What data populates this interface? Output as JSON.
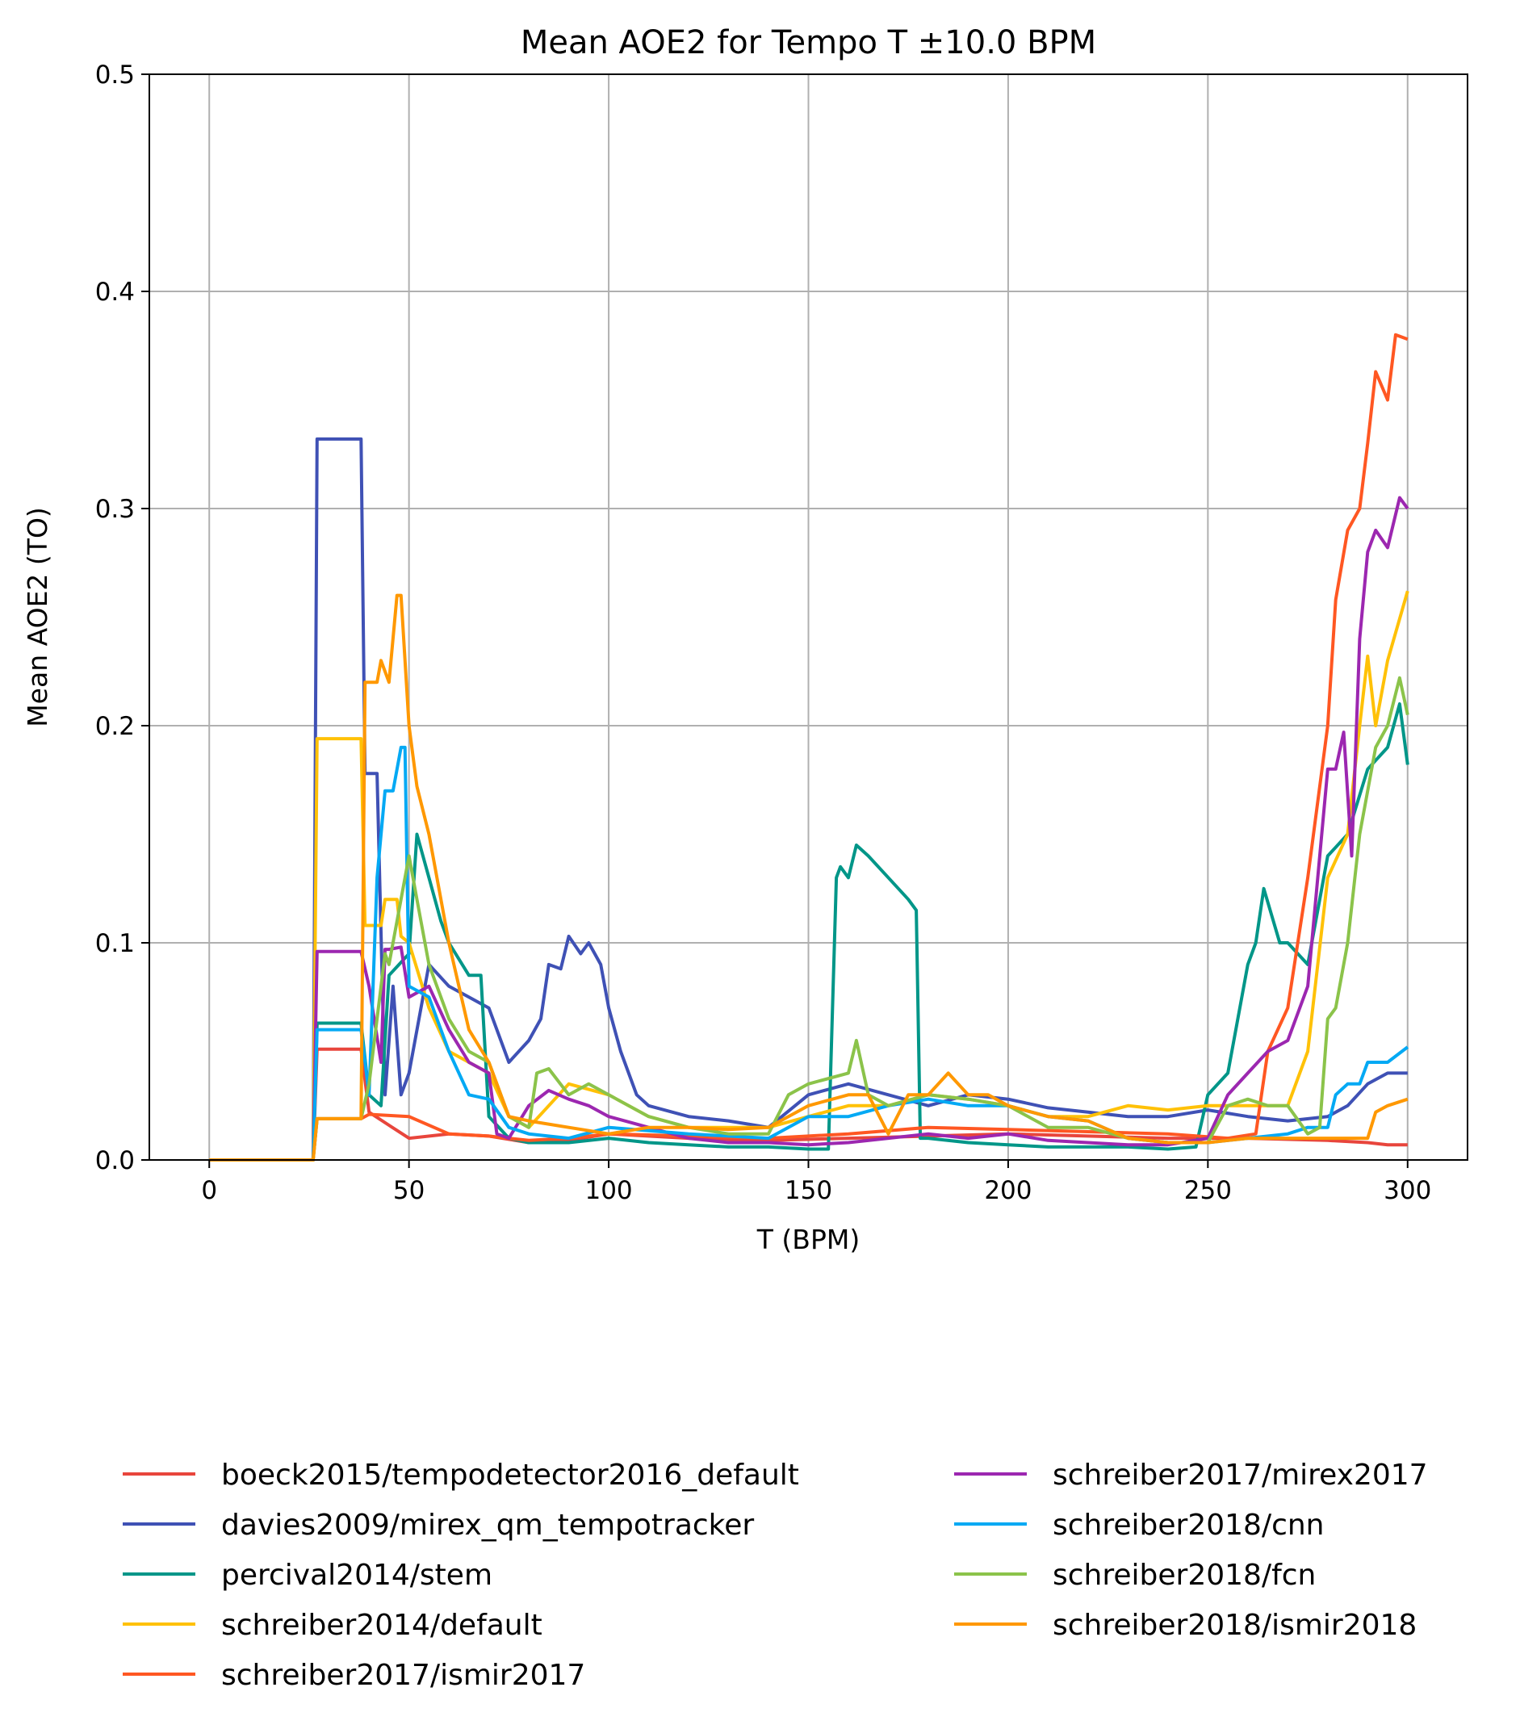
{
  "chart_data": {
    "type": "line",
    "title": "Mean AOE2 for Tempo T ±10.0 BPM",
    "xlabel": "T (BPM)",
    "ylabel": "Mean AOE2 (TO)",
    "xlim": [
      -15,
      315
    ],
    "ylim": [
      0,
      0.5
    ],
    "xticks": [
      0,
      50,
      100,
      150,
      200,
      250,
      300
    ],
    "yticks": [
      0.0,
      0.1,
      0.2,
      0.3,
      0.4,
      0.5
    ],
    "xtick_labels": [
      "0",
      "50",
      "100",
      "150",
      "200",
      "250",
      "300"
    ],
    "ytick_labels": [
      "0.0",
      "0.1",
      "0.2",
      "0.3",
      "0.4",
      "0.5"
    ],
    "grid": true,
    "legend_position": "below",
    "series": [
      {
        "name": "boeck2015/tempodetector2016_default",
        "color": "#e8453c",
        "x": [
          0,
          26,
          27,
          38,
          40,
          45,
          50,
          60,
          70,
          80,
          90,
          100,
          120,
          140,
          160,
          180,
          200,
          220,
          240,
          260,
          280,
          290,
          295,
          300
        ],
        "y": [
          0,
          0,
          0.051,
          0.051,
          0.022,
          0.016,
          0.01,
          0.012,
          0.011,
          0.008,
          0.009,
          0.012,
          0.01,
          0.009,
          0.01,
          0.011,
          0.012,
          0.011,
          0.01,
          0.01,
          0.009,
          0.008,
          0.007,
          0.007
        ]
      },
      {
        "name": "davies2009/mirex_qm_tempotracker",
        "color": "#3f51b5",
        "x": [
          0,
          26,
          27,
          38,
          39,
          42,
          44,
          46,
          48,
          50,
          55,
          60,
          65,
          70,
          75,
          80,
          83,
          85,
          88,
          90,
          93,
          95,
          98,
          100,
          103,
          107,
          110,
          120,
          130,
          140,
          150,
          160,
          170,
          180,
          190,
          200,
          210,
          220,
          230,
          240,
          250,
          260,
          270,
          280,
          285,
          290,
          295,
          300
        ],
        "y": [
          0,
          0,
          0.332,
          0.332,
          0.178,
          0.178,
          0.03,
          0.08,
          0.03,
          0.04,
          0.09,
          0.08,
          0.075,
          0.07,
          0.045,
          0.055,
          0.065,
          0.09,
          0.088,
          0.103,
          0.095,
          0.1,
          0.09,
          0.07,
          0.05,
          0.03,
          0.025,
          0.02,
          0.018,
          0.015,
          0.03,
          0.035,
          0.03,
          0.025,
          0.03,
          0.028,
          0.024,
          0.022,
          0.02,
          0.02,
          0.023,
          0.02,
          0.018,
          0.02,
          0.025,
          0.035,
          0.04,
          0.04
        ]
      },
      {
        "name": "percival2014/stem",
        "color": "#009688",
        "x": [
          0,
          26,
          27,
          38,
          40,
          43,
          45,
          50,
          52,
          55,
          58,
          60,
          65,
          68,
          70,
          75,
          80,
          90,
          100,
          110,
          120,
          130,
          140,
          150,
          155,
          157,
          158,
          160,
          162,
          165,
          170,
          175,
          177,
          178,
          180,
          190,
          200,
          210,
          220,
          230,
          240,
          247,
          250,
          255,
          260,
          262,
          264,
          268,
          270,
          275,
          280,
          285,
          290,
          295,
          298,
          300
        ],
        "y": [
          0,
          0,
          0.063,
          0.063,
          0.03,
          0.025,
          0.085,
          0.095,
          0.15,
          0.13,
          0.11,
          0.1,
          0.085,
          0.085,
          0.02,
          0.01,
          0.008,
          0.008,
          0.01,
          0.008,
          0.007,
          0.006,
          0.006,
          0.005,
          0.005,
          0.13,
          0.135,
          0.13,
          0.145,
          0.14,
          0.13,
          0.12,
          0.115,
          0.01,
          0.01,
          0.008,
          0.007,
          0.006,
          0.006,
          0.006,
          0.005,
          0.006,
          0.03,
          0.04,
          0.09,
          0.1,
          0.125,
          0.1,
          0.1,
          0.09,
          0.14,
          0.15,
          0.18,
          0.19,
          0.21,
          0.182
        ]
      },
      {
        "name": "schreiber2014/default",
        "color": "#ffc107",
        "x": [
          0,
          26,
          27,
          38,
          39,
          43,
          44,
          47,
          48,
          50,
          55,
          60,
          65,
          70,
          75,
          80,
          90,
          100,
          110,
          120,
          130,
          140,
          150,
          160,
          170,
          180,
          190,
          200,
          210,
          220,
          230,
          240,
          250,
          260,
          270,
          275,
          280,
          285,
          288,
          290,
          292,
          295,
          300
        ],
        "y": [
          0,
          0,
          0.194,
          0.194,
          0.108,
          0.108,
          0.12,
          0.12,
          0.103,
          0.1,
          0.07,
          0.05,
          0.045,
          0.04,
          0.02,
          0.015,
          0.035,
          0.03,
          0.02,
          0.015,
          0.015,
          0.015,
          0.02,
          0.025,
          0.025,
          0.03,
          0.028,
          0.025,
          0.02,
          0.02,
          0.025,
          0.023,
          0.025,
          0.025,
          0.025,
          0.05,
          0.13,
          0.15,
          0.2,
          0.232,
          0.2,
          0.23,
          0.262
        ]
      },
      {
        "name": "schreiber2017/ismir2017",
        "color": "#ff5722",
        "x": [
          0,
          26,
          27,
          38,
          40,
          50,
          60,
          70,
          80,
          90,
          100,
          120,
          140,
          160,
          180,
          200,
          220,
          240,
          255,
          262,
          265,
          270,
          275,
          280,
          282,
          285,
          288,
          290,
          292,
          295,
          297,
          300
        ],
        "y": [
          0,
          0,
          0.019,
          0.019,
          0.021,
          0.02,
          0.012,
          0.011,
          0.009,
          0.01,
          0.012,
          0.011,
          0.01,
          0.012,
          0.015,
          0.014,
          0.013,
          0.012,
          0.01,
          0.012,
          0.05,
          0.07,
          0.13,
          0.2,
          0.258,
          0.29,
          0.3,
          0.33,
          0.363,
          0.35,
          0.38,
          0.378
        ]
      },
      {
        "name": "schreiber2017/mirex2017",
        "color": "#9c27b0",
        "x": [
          0,
          26,
          27,
          38,
          40,
          43,
          44,
          45,
          48,
          50,
          55,
          60,
          65,
          70,
          72,
          75,
          80,
          85,
          90,
          95,
          100,
          110,
          120,
          130,
          140,
          150,
          160,
          170,
          180,
          190,
          200,
          210,
          220,
          230,
          240,
          250,
          255,
          260,
          265,
          270,
          275,
          280,
          282,
          284,
          286,
          288,
          290,
          292,
          295,
          298,
          300
        ],
        "y": [
          0,
          0,
          0.096,
          0.096,
          0.08,
          0.045,
          0.097,
          0.097,
          0.098,
          0.075,
          0.08,
          0.06,
          0.045,
          0.04,
          0.012,
          0.01,
          0.025,
          0.032,
          0.028,
          0.025,
          0.02,
          0.015,
          0.01,
          0.008,
          0.008,
          0.007,
          0.008,
          0.01,
          0.012,
          0.01,
          0.012,
          0.009,
          0.008,
          0.007,
          0.007,
          0.01,
          0.03,
          0.04,
          0.05,
          0.055,
          0.08,
          0.18,
          0.18,
          0.197,
          0.14,
          0.24,
          0.28,
          0.29,
          0.282,
          0.305,
          0.3
        ]
      },
      {
        "name": "schreiber2018/cnn",
        "color": "#03a9f4",
        "x": [
          0,
          26,
          27,
          38,
          40,
          42,
          44,
          46,
          48,
          49,
          50,
          55,
          60,
          65,
          70,
          75,
          80,
          90,
          100,
          120,
          140,
          150,
          155,
          160,
          170,
          180,
          190,
          200,
          210,
          220,
          230,
          240,
          250,
          260,
          270,
          275,
          280,
          282,
          285,
          288,
          290,
          295,
          300
        ],
        "y": [
          0,
          0,
          0.06,
          0.06,
          0.03,
          0.13,
          0.17,
          0.17,
          0.19,
          0.19,
          0.08,
          0.075,
          0.05,
          0.03,
          0.028,
          0.015,
          0.012,
          0.01,
          0.015,
          0.012,
          0.01,
          0.02,
          0.02,
          0.02,
          0.025,
          0.028,
          0.025,
          0.025,
          0.02,
          0.018,
          0.01,
          0.008,
          0.008,
          0.01,
          0.012,
          0.015,
          0.015,
          0.03,
          0.035,
          0.035,
          0.045,
          0.045,
          0.052
        ]
      },
      {
        "name": "schreiber2018/fcn",
        "color": "#8bc34a",
        "x": [
          0,
          26,
          27,
          38,
          40,
          44,
          45,
          50,
          52,
          55,
          60,
          65,
          70,
          75,
          80,
          82,
          85,
          90,
          95,
          100,
          110,
          120,
          130,
          140,
          145,
          150,
          160,
          162,
          165,
          170,
          180,
          190,
          200,
          210,
          220,
          230,
          240,
          250,
          255,
          260,
          265,
          270,
          275,
          278,
          280,
          282,
          285,
          288,
          290,
          292,
          295,
          298,
          300
        ],
        "y": [
          0,
          0,
          0.019,
          0.019,
          0.035,
          0.095,
          0.09,
          0.14,
          0.12,
          0.09,
          0.065,
          0.05,
          0.045,
          0.02,
          0.015,
          0.04,
          0.042,
          0.03,
          0.035,
          0.03,
          0.02,
          0.015,
          0.012,
          0.012,
          0.03,
          0.035,
          0.04,
          0.055,
          0.03,
          0.025,
          0.03,
          0.028,
          0.025,
          0.015,
          0.015,
          0.01,
          0.008,
          0.008,
          0.025,
          0.028,
          0.025,
          0.025,
          0.012,
          0.015,
          0.065,
          0.07,
          0.1,
          0.15,
          0.17,
          0.19,
          0.2,
          0.222,
          0.205
        ]
      },
      {
        "name": "schreiber2018/ismir2018",
        "color": "#ff9800",
        "x": [
          0,
          26,
          27,
          38,
          39,
          42,
          43,
          45,
          47,
          48,
          50,
          52,
          55,
          60,
          65,
          70,
          75,
          80,
          90,
          100,
          110,
          120,
          130,
          140,
          150,
          160,
          165,
          170,
          175,
          180,
          185,
          190,
          195,
          200,
          210,
          220,
          230,
          240,
          250,
          260,
          270,
          280,
          290,
          292,
          295,
          300
        ],
        "y": [
          0,
          0,
          0.019,
          0.019,
          0.22,
          0.22,
          0.23,
          0.22,
          0.26,
          0.26,
          0.2,
          0.172,
          0.15,
          0.1,
          0.06,
          0.045,
          0.02,
          0.018,
          0.015,
          0.012,
          0.015,
          0.015,
          0.014,
          0.015,
          0.025,
          0.03,
          0.03,
          0.012,
          0.03,
          0.03,
          0.04,
          0.03,
          0.03,
          0.025,
          0.02,
          0.018,
          0.01,
          0.008,
          0.008,
          0.01,
          0.01,
          0.01,
          0.01,
          0.022,
          0.025,
          0.028
        ]
      }
    ]
  }
}
